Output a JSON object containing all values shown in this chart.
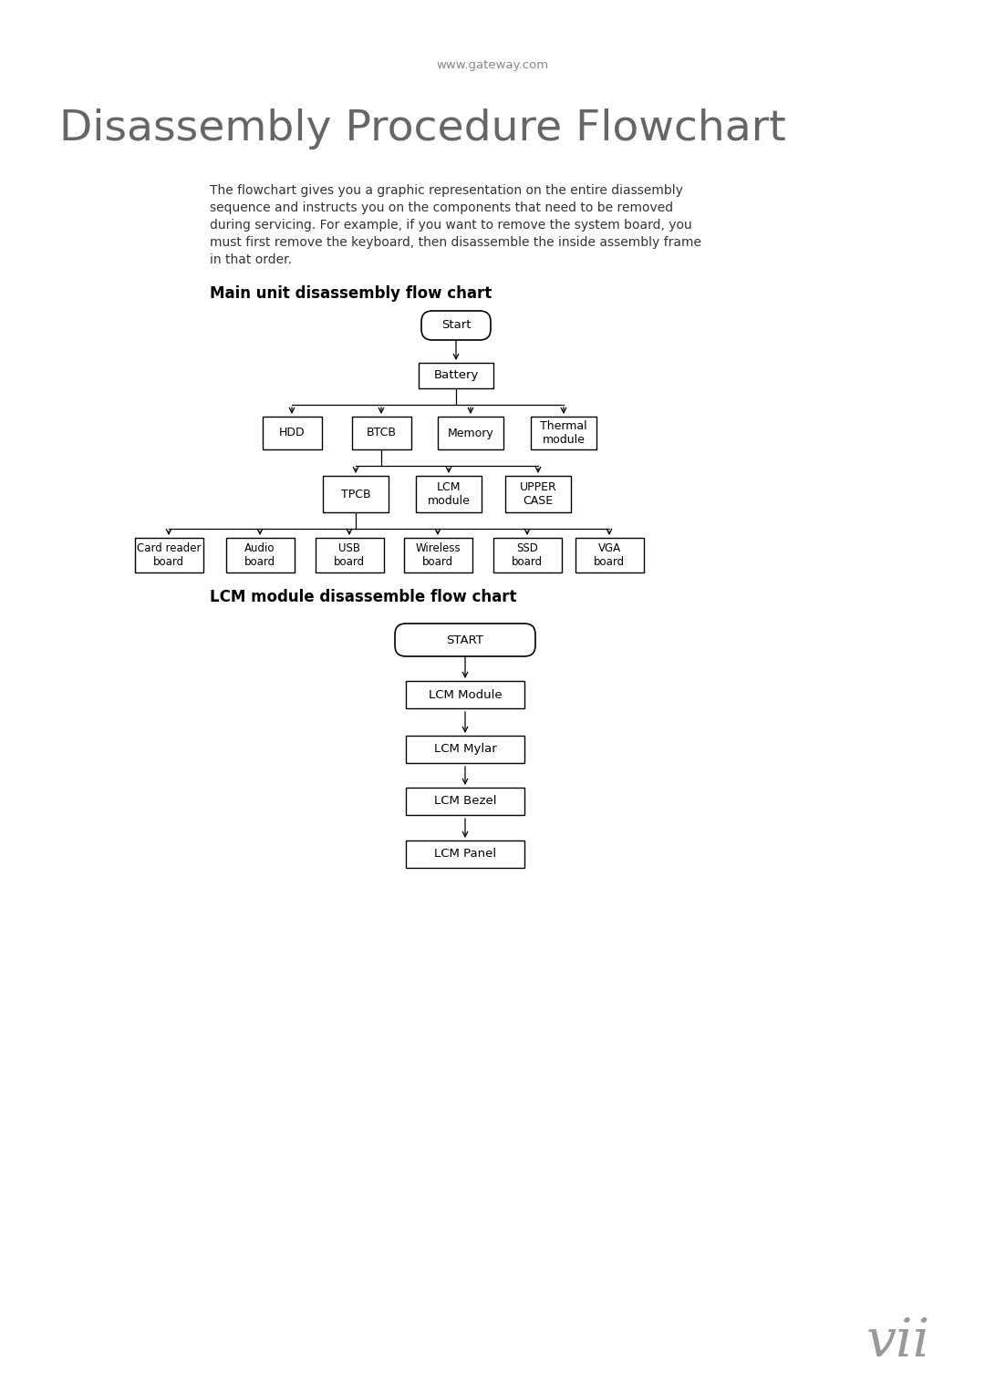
{
  "page_url": "www.gateway.com",
  "main_title": "Disassembly Procedure Flowchart",
  "description_lines": [
    "The flowchart gives you a graphic representation on the entire diassembly",
    "sequence and instructs you on the components that need to be removed",
    "during servicing. For example, if you want to remove the system board, you",
    "must first remove the keyboard, then disassemble the inside assembly frame",
    "in that order."
  ],
  "section1_title": "Main unit disassembly flow chart",
  "section2_title": "LCM module disassemble flow chart",
  "page_num": "vii",
  "bg_color": "#ffffff",
  "title_color": "#666666",
  "text_color": "#333333",
  "url_color": "#888888",
  "pagenum_color": "#999999",
  "fc1": {
    "start_label": "Start",
    "battery_label": "Battery",
    "level2_labels": [
      "HDD",
      "BTCB",
      "Memory",
      "Thermal\nmodule"
    ],
    "level3_labels": [
      "TPCB",
      "LCM\nmodule",
      "UPPER\nCASE"
    ],
    "level4_labels": [
      "Card reader\nboard",
      "Audio\nboard",
      "USB\nboard",
      "Wireless\nboard",
      "SSD\nboard",
      "VGA\nboard"
    ]
  },
  "fc2_labels": [
    "START",
    "LCM Module",
    "LCM Mylar",
    "LCM Bezel",
    "LCM Panel"
  ]
}
